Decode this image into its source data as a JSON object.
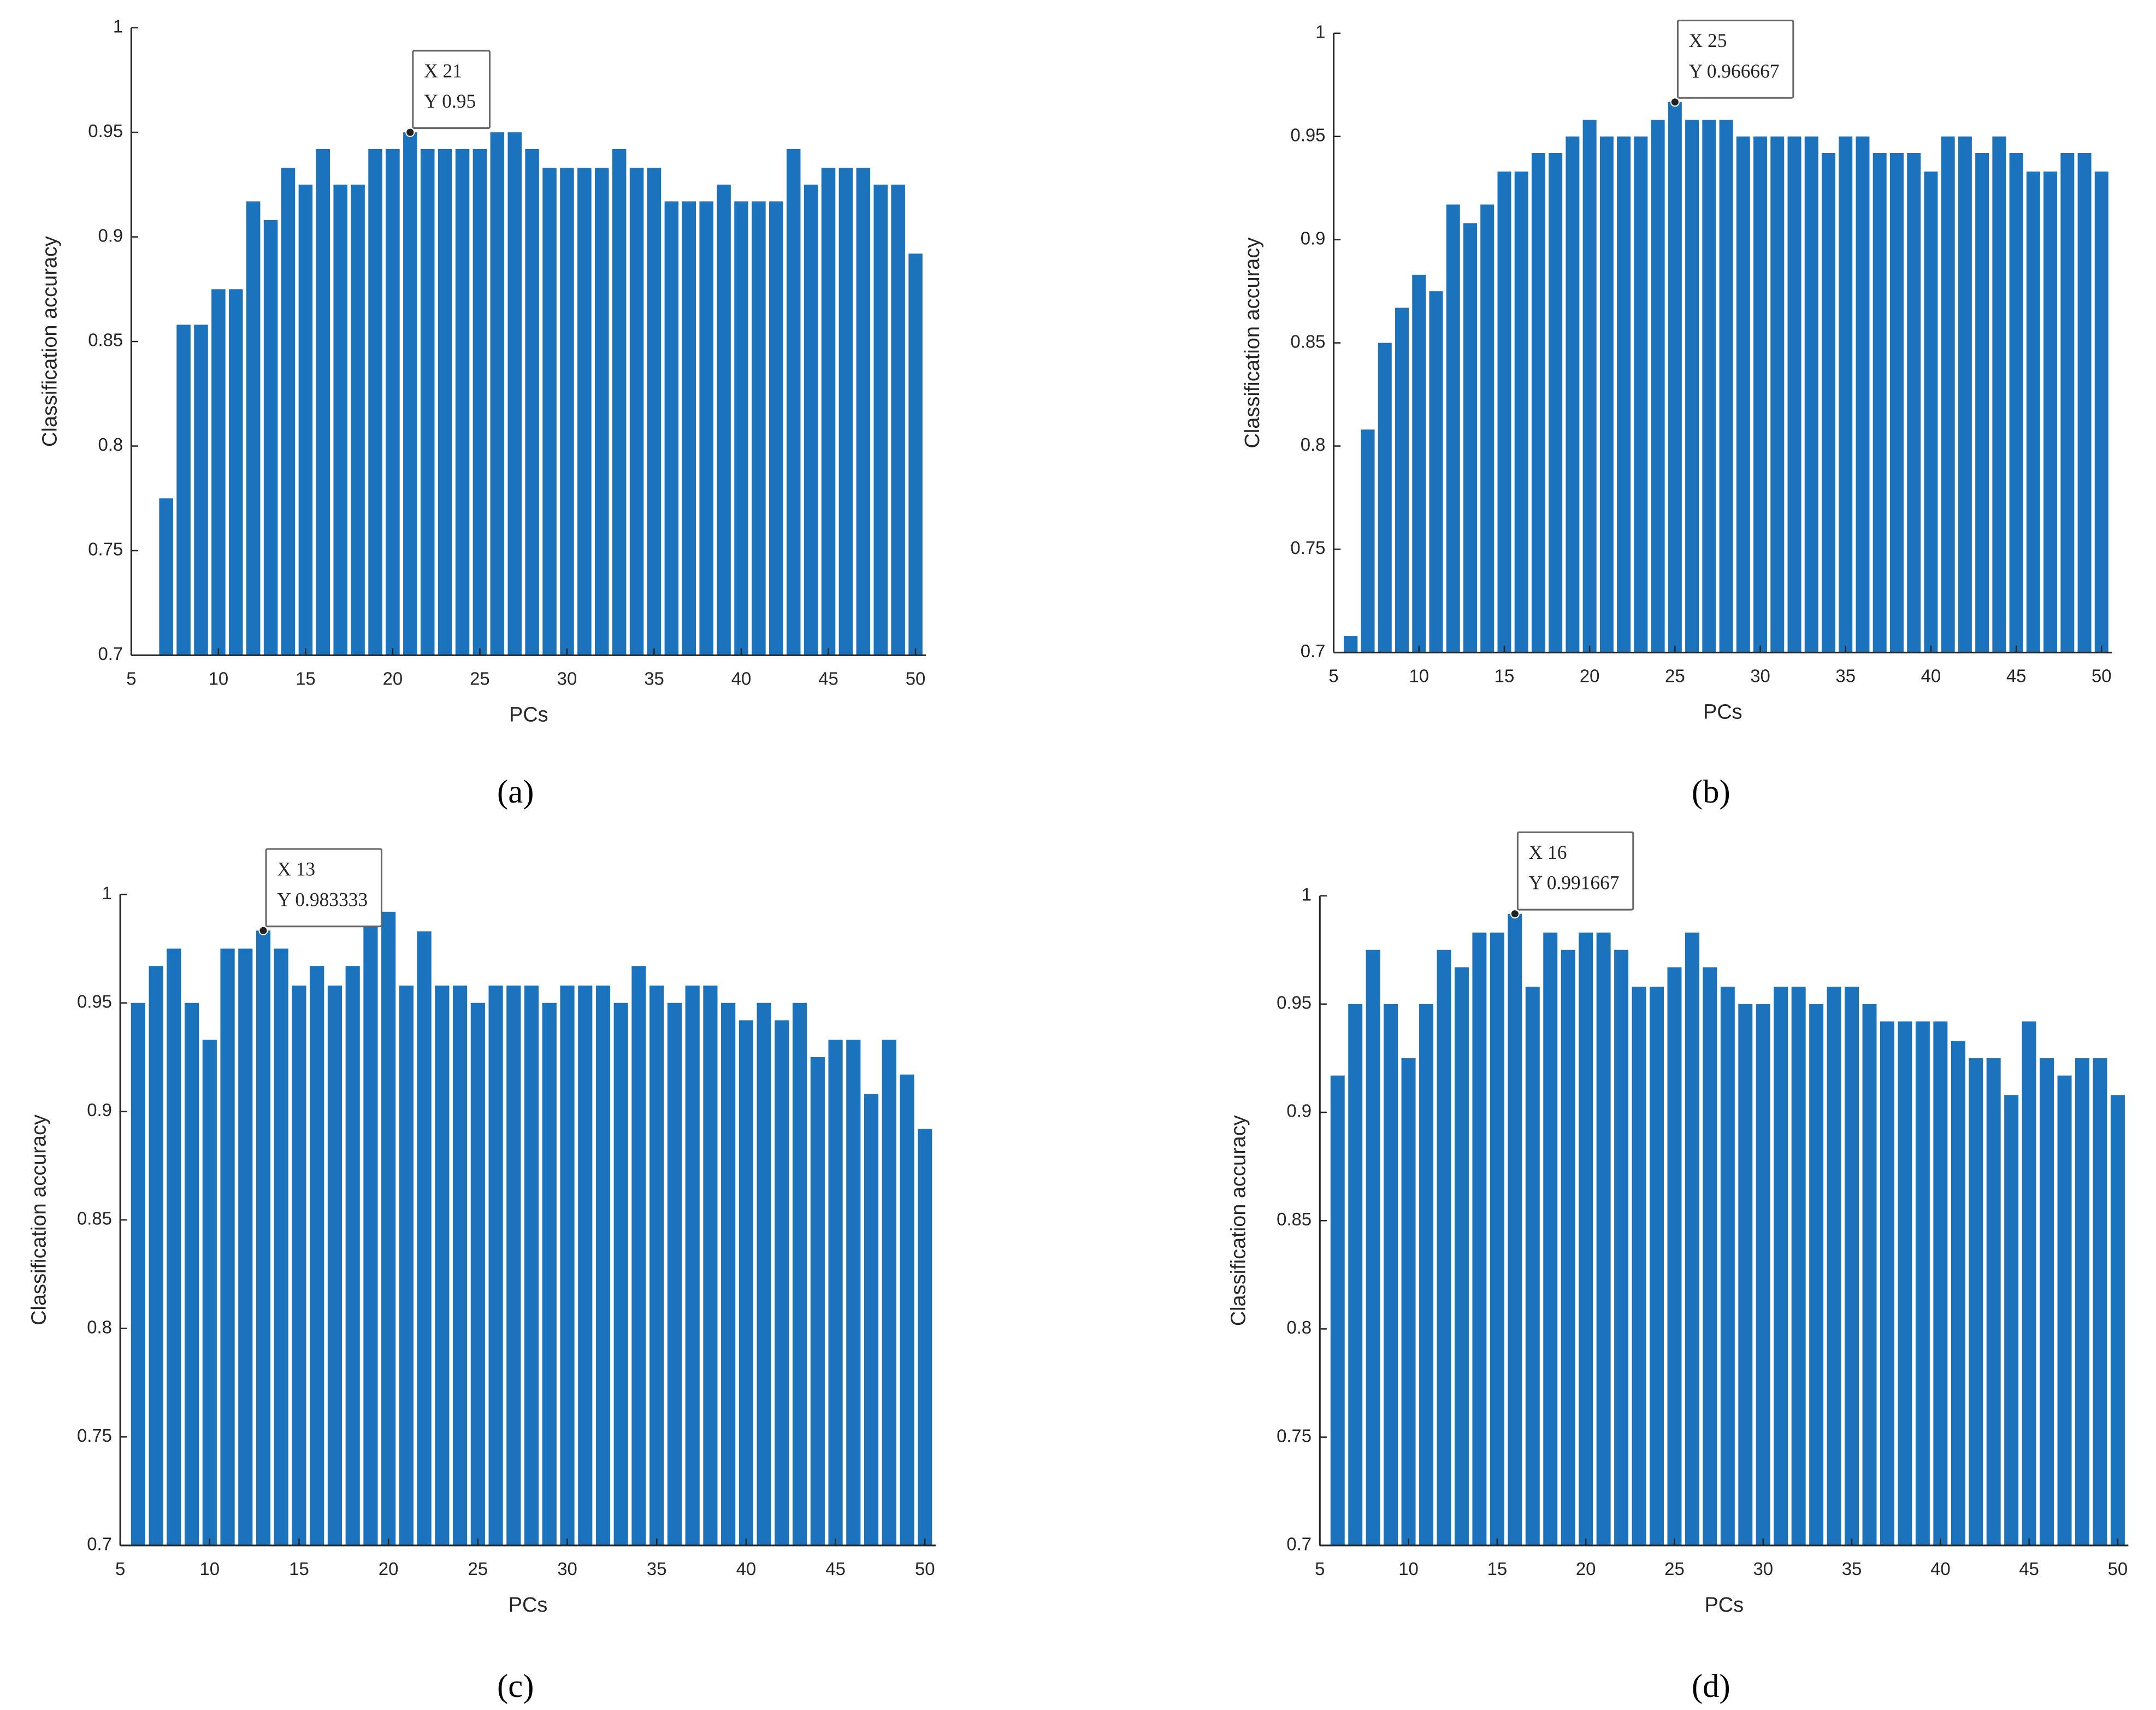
{
  "chart_data": [
    {
      "type": "bar",
      "caption": "(a)",
      "xlabel": "PCs",
      "ylabel": "Classification accuracy",
      "color": "#1b72bd",
      "xlim": [
        5,
        50.6
      ],
      "ylim": [
        0.7,
        1
      ],
      "xticks": [
        5,
        10,
        15,
        20,
        25,
        30,
        35,
        40,
        45,
        50
      ],
      "yticks": [
        0.7,
        0.75,
        0.8,
        0.85,
        0.9,
        0.95,
        1
      ],
      "x": [
        7,
        8,
        9,
        10,
        11,
        12,
        13,
        14,
        15,
        16,
        17,
        18,
        19,
        20,
        21,
        22,
        23,
        24,
        25,
        26,
        27,
        28,
        29,
        30,
        31,
        32,
        33,
        34,
        35,
        36,
        37,
        38,
        39,
        40,
        41,
        42,
        43,
        44,
        45,
        46,
        47,
        48,
        49,
        50
      ],
      "values": [
        0.775,
        0.858,
        0.858,
        0.875,
        0.875,
        0.917,
        0.908,
        0.933,
        0.925,
        0.942,
        0.925,
        0.925,
        0.942,
        0.942,
        0.95,
        0.942,
        0.942,
        0.942,
        0.942,
        0.95,
        0.95,
        0.942,
        0.933,
        0.933,
        0.933,
        0.933,
        0.942,
        0.933,
        0.933,
        0.917,
        0.917,
        0.917,
        0.925,
        0.917,
        0.917,
        0.917,
        0.942,
        0.925,
        0.933,
        0.933,
        0.933,
        0.925,
        0.925,
        0.892
      ],
      "annotation": {
        "lines": [
          "X 21",
          "Y 0.95"
        ],
        "x": 21,
        "y": 0.95
      }
    },
    {
      "type": "bar",
      "caption": "(b)",
      "xlabel": "PCs",
      "ylabel": "Classification accuracy",
      "color": "#1b72bd",
      "xlim": [
        5,
        50.6
      ],
      "ylim": [
        0.7,
        1
      ],
      "xticks": [
        5,
        10,
        15,
        20,
        25,
        30,
        35,
        40,
        45,
        50
      ],
      "yticks": [
        0.7,
        0.75,
        0.8,
        0.85,
        0.9,
        0.95,
        1
      ],
      "x": [
        6,
        7,
        8,
        9,
        10,
        11,
        12,
        13,
        14,
        15,
        16,
        17,
        18,
        19,
        20,
        21,
        22,
        23,
        24,
        25,
        26,
        27,
        28,
        29,
        30,
        31,
        32,
        33,
        34,
        35,
        36,
        37,
        38,
        39,
        40,
        41,
        42,
        43,
        44,
        45,
        46,
        47,
        48,
        49,
        50
      ],
      "values": [
        0.708,
        0.808,
        0.85,
        0.867,
        0.883,
        0.875,
        0.917,
        0.908,
        0.917,
        0.933,
        0.933,
        0.942,
        0.942,
        0.95,
        0.958,
        0.95,
        0.95,
        0.95,
        0.958,
        0.966667,
        0.958,
        0.958,
        0.958,
        0.95,
        0.95,
        0.95,
        0.95,
        0.95,
        0.942,
        0.95,
        0.95,
        0.942,
        0.942,
        0.942,
        0.933,
        0.95,
        0.95,
        0.942,
        0.95,
        0.942,
        0.933,
        0.933,
        0.942,
        0.942,
        0.933
      ],
      "annotation": {
        "lines": [
          "X 25",
          "Y 0.966667"
        ],
        "x": 25,
        "y": 0.966667
      }
    },
    {
      "type": "bar",
      "caption": "(c)",
      "xlabel": "PCs",
      "ylabel": "Classification accuracy",
      "color": "#1b72bd",
      "xlim": [
        5,
        50.6
      ],
      "ylim": [
        0.7,
        1
      ],
      "xticks": [
        5,
        10,
        15,
        20,
        25,
        30,
        35,
        40,
        45,
        50
      ],
      "yticks": [
        0.7,
        0.75,
        0.8,
        0.85,
        0.9,
        0.95,
        1
      ],
      "x": [
        6,
        7,
        8,
        9,
        10,
        11,
        12,
        13,
        14,
        15,
        16,
        17,
        18,
        19,
        20,
        21,
        22,
        23,
        24,
        25,
        26,
        27,
        28,
        29,
        30,
        31,
        32,
        33,
        34,
        35,
        36,
        37,
        38,
        39,
        40,
        41,
        42,
        43,
        44,
        45,
        46,
        47,
        48,
        49,
        50
      ],
      "values": [
        0.95,
        0.967,
        0.975,
        0.95,
        0.933,
        0.975,
        0.975,
        0.983333,
        0.975,
        0.958,
        0.967,
        0.958,
        0.967,
        0.992,
        0.992,
        0.958,
        0.983,
        0.958,
        0.958,
        0.95,
        0.958,
        0.958,
        0.958,
        0.95,
        0.958,
        0.958,
        0.958,
        0.95,
        0.967,
        0.958,
        0.95,
        0.958,
        0.958,
        0.95,
        0.942,
        0.95,
        0.942,
        0.95,
        0.925,
        0.933,
        0.933,
        0.908,
        0.933,
        0.917,
        0.892
      ],
      "annotation": {
        "lines": [
          "X 13",
          "Y 0.983333"
        ],
        "x": 13,
        "y": 0.983333
      }
    },
    {
      "type": "bar",
      "caption": "(d)",
      "xlabel": "PCs",
      "ylabel": "Classification accuracy",
      "color": "#1b72bd",
      "xlim": [
        5,
        50.6
      ],
      "ylim": [
        0.7,
        1
      ],
      "xticks": [
        5,
        10,
        15,
        20,
        25,
        30,
        35,
        40,
        45,
        50
      ],
      "yticks": [
        0.7,
        0.75,
        0.8,
        0.85,
        0.9,
        0.95,
        1
      ],
      "x": [
        6,
        7,
        8,
        9,
        10,
        11,
        12,
        13,
        14,
        15,
        16,
        17,
        18,
        19,
        20,
        21,
        22,
        23,
        24,
        25,
        26,
        27,
        28,
        29,
        30,
        31,
        32,
        33,
        34,
        35,
        36,
        37,
        38,
        39,
        40,
        41,
        42,
        43,
        44,
        45,
        46,
        47,
        48,
        49,
        50
      ],
      "values": [
        0.917,
        0.95,
        0.975,
        0.95,
        0.925,
        0.95,
        0.975,
        0.967,
        0.983,
        0.983,
        0.991667,
        0.958,
        0.983,
        0.975,
        0.983,
        0.983,
        0.975,
        0.958,
        0.958,
        0.967,
        0.983,
        0.967,
        0.958,
        0.95,
        0.95,
        0.958,
        0.958,
        0.95,
        0.958,
        0.958,
        0.95,
        0.942,
        0.942,
        0.942,
        0.942,
        0.933,
        0.925,
        0.925,
        0.908,
        0.942,
        0.925,
        0.917,
        0.925,
        0.925,
        0.908
      ],
      "annotation": {
        "lines": [
          "X 16",
          "Y 0.991667"
        ],
        "x": 16,
        "y": 0.991667
      }
    }
  ]
}
